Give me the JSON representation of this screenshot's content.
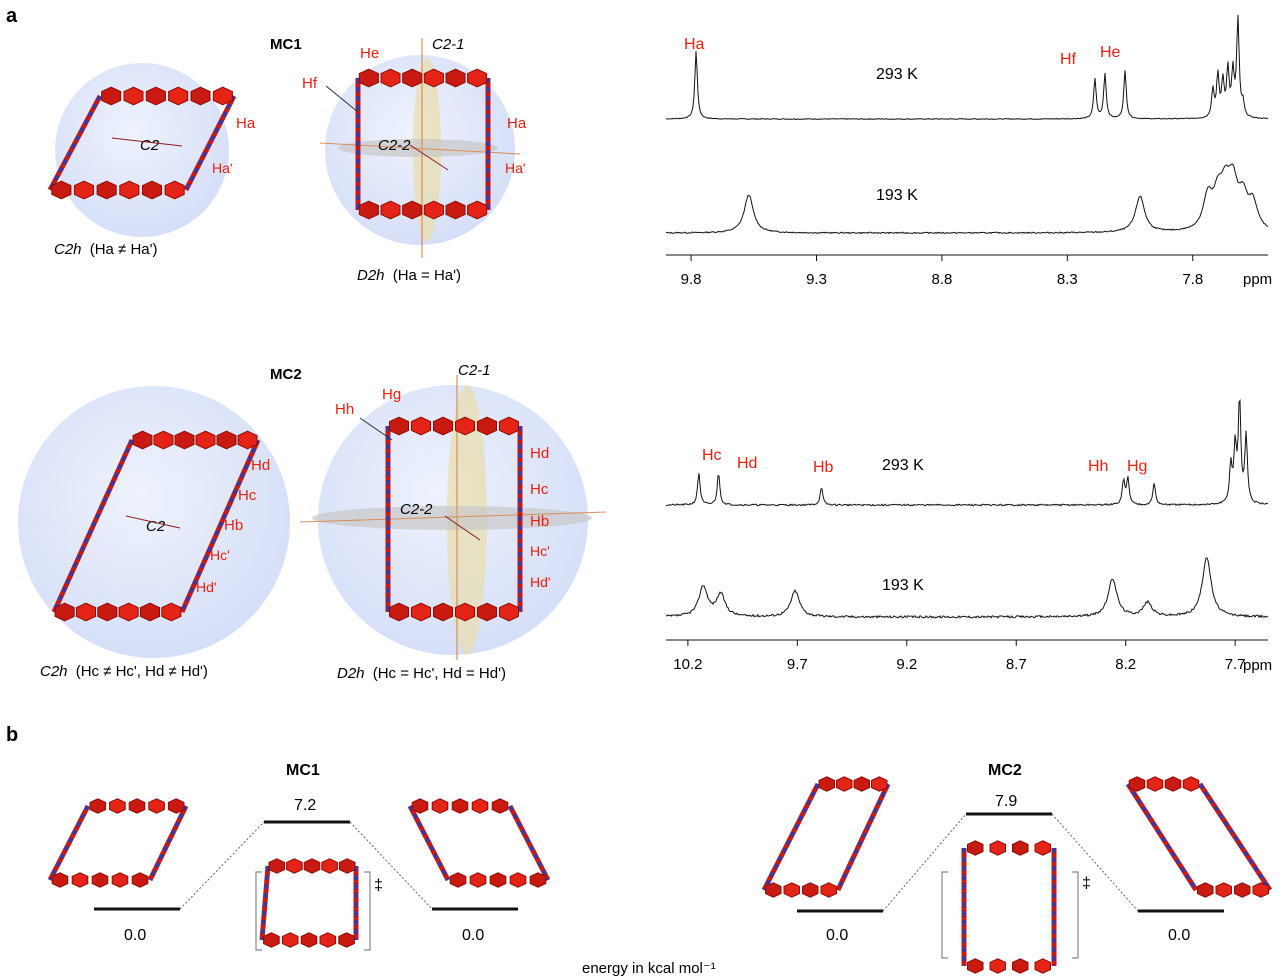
{
  "panel_labels": {
    "a": "a",
    "b": "b"
  },
  "colors": {
    "accent": "#e8200e",
    "ring": "#e01f10",
    "linker": "#1f3fbf",
    "sphere": "#dfe6fb",
    "spectrum": "#111111"
  },
  "mc1": {
    "name": "MC1",
    "axes": {
      "c2_1": "C2-1",
      "c2_2": "C2-2",
      "c2": "C2"
    },
    "protons": {
      "ha": "Ha",
      "ha_prime": "Ha'",
      "he": "He",
      "hf": "Hf"
    },
    "left_caption": {
      "sym": "C2h",
      "cond": "(Ha ≠ Ha')"
    },
    "right_caption": {
      "sym": "D2h",
      "cond": "(Ha = Ha')"
    },
    "spectrum": {
      "temp_top": "293 K",
      "temp_bottom": "193 K",
      "ticks": [
        "9.8",
        "9.3",
        "8.8",
        "8.3",
        "7.8"
      ],
      "unit": "ppm",
      "xlim": [
        9.9,
        7.5
      ],
      "peak_labels": {
        "ha": "Ha",
        "hf": "Hf",
        "he": "He"
      },
      "peaks_293": [
        [
          9.78,
          68
        ],
        [
          8.19,
          40
        ],
        [
          8.15,
          45
        ],
        [
          8.07,
          48
        ],
        [
          7.72,
          28
        ],
        [
          7.7,
          42
        ],
        [
          7.68,
          36
        ],
        [
          7.66,
          48
        ],
        [
          7.64,
          44
        ],
        [
          7.62,
          98
        ],
        [
          7.6,
          14
        ]
      ],
      "peaks_193": [
        [
          9.57,
          38
        ],
        [
          8.01,
          36
        ],
        [
          7.74,
          32
        ],
        [
          7.7,
          30
        ],
        [
          7.67,
          36
        ],
        [
          7.64,
          42
        ],
        [
          7.6,
          30
        ],
        [
          7.56,
          26
        ]
      ]
    }
  },
  "mc2": {
    "name": "MC2",
    "axes": {
      "c2_1": "C2-1",
      "c2_2": "C2-2",
      "c2": "C2"
    },
    "protons": {
      "hb": "Hb",
      "hc": "Hc",
      "hc_prime": "Hc'",
      "hd": "Hd",
      "hd_prime": "Hd'",
      "hg": "Hg",
      "hh": "Hh"
    },
    "left_caption": {
      "sym": "C2h",
      "cond": "(Hc ≠ Hc', Hd ≠ Hd')"
    },
    "right_caption": {
      "sym": "D2h",
      "cond": "(Hc = Hc', Hd = Hd')"
    },
    "spectrum": {
      "temp_top": "293 K",
      "temp_bottom": "193 K",
      "ticks": [
        "10.2",
        "9.7",
        "9.2",
        "8.7",
        "8.2",
        "7.7"
      ],
      "unit": "ppm",
      "xlim": [
        10.3,
        7.55
      ],
      "peak_labels": {
        "hc": "Hc",
        "hd": "Hd",
        "hb": "Hb",
        "hh": "Hh",
        "hg": "Hg"
      },
      "peaks_293": [
        [
          10.15,
          32
        ],
        [
          10.06,
          32
        ],
        [
          9.59,
          18
        ],
        [
          8.21,
          24
        ],
        [
          8.19,
          26
        ],
        [
          8.07,
          22
        ],
        [
          7.72,
          38
        ],
        [
          7.7,
          55
        ],
        [
          7.68,
          102
        ],
        [
          7.65,
          68
        ]
      ],
      "peaks_193": [
        [
          10.13,
          30
        ],
        [
          10.05,
          22
        ],
        [
          9.71,
          26
        ],
        [
          8.26,
          38
        ],
        [
          8.1,
          14
        ],
        [
          7.83,
          60
        ]
      ]
    }
  },
  "panel_b": {
    "mc1": {
      "name": "MC1",
      "ts_energy": "7.2",
      "left_energy": "0.0",
      "right_energy": "0.0",
      "ts_symbol": "‡"
    },
    "mc2": {
      "name": "MC2",
      "ts_energy": "7.9",
      "left_energy": "0.0",
      "right_energy": "0.0",
      "ts_symbol": "‡"
    },
    "energy_unit": "energy in kcal mol⁻¹"
  }
}
